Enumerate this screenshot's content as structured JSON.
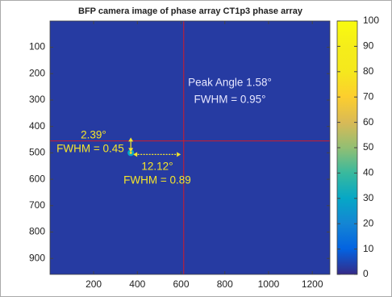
{
  "chart_data": {
    "type": "heatmap",
    "title": "BFP camera image of phase array CT1p3 phase array",
    "xlim": [
      0.5,
      1280.5
    ],
    "ylim": [
      0.5,
      960.5
    ],
    "xticks": [
      200,
      400,
      600,
      800,
      1000,
      1200
    ],
    "yticks": [
      100,
      200,
      300,
      400,
      500,
      600,
      700,
      800,
      900
    ],
    "background_value": 3,
    "peak": {
      "x": 370,
      "y": 500,
      "value": 100
    },
    "crosshair": {
      "x": 612,
      "y": 455
    },
    "colorbar": {
      "lim": [
        0,
        100
      ],
      "ticks": [
        0,
        10,
        20,
        30,
        40,
        50,
        60,
        70,
        80,
        90,
        100
      ]
    },
    "annotations": [
      {
        "text": "Peak Angle 1.58°",
        "color": "#e6e6ff"
      },
      {
        "text": "FWHM = 0.95°",
        "color": "#e6e6ff"
      },
      {
        "text": "2.39°",
        "color": "#f5e52a"
      },
      {
        "text": "FWHM = 0.45",
        "color": "#f5e52a"
      },
      {
        "text": "12.12°",
        "color": "#f5e52a"
      },
      {
        "text": "FWHM = 0.89",
        "color": "#f5e52a"
      }
    ]
  }
}
